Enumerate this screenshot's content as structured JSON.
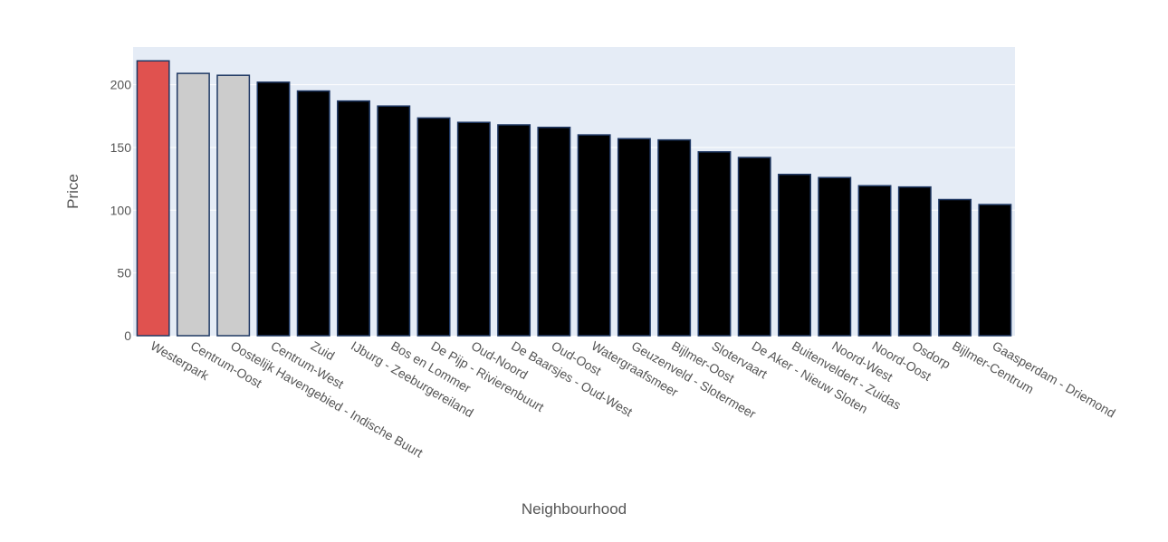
{
  "chart_data": {
    "type": "bar",
    "title": "",
    "xlabel": "Neighbourhood",
    "ylabel": "Price",
    "ylim": [
      0,
      230
    ],
    "yticks": [
      0,
      50,
      100,
      150,
      200
    ],
    "grid": true,
    "categories": [
      "Westerpark",
      "Centrum-Oost",
      "Oostelijk Havengebied - Indische Buurt",
      "Centrum-West",
      "Zuid",
      "IJburg - Zeeburgereiland",
      "Bos en Lommer",
      "De Pijp - Rivierenbuurt",
      "Oud-Noord",
      "De Baarsjes - Oud-West",
      "Oud-Oost",
      "Watergraafsmeer",
      "Geuzenveld - Slotermeer",
      "Bijlmer-Oost",
      "Slotervaart",
      "De Aker - Nieuw Sloten",
      "Buitenveldert - Zuidas",
      "Noord-West",
      "Noord-Oost",
      "Osdorp",
      "Bijlmer-Centrum",
      "Gaasperdam - Driemond"
    ],
    "values": [
      219,
      209,
      207.5,
      202,
      195,
      187,
      183,
      173.5,
      170,
      168,
      166,
      160,
      157,
      156,
      146.5,
      142,
      128.5,
      126,
      119.5,
      118.5,
      108.5,
      104.5
    ],
    "bar_colors": [
      "#e0524f",
      "#cccccc",
      "#cccccc",
      "#000000",
      "#000000",
      "#000000",
      "#000000",
      "#000000",
      "#000000",
      "#000000",
      "#000000",
      "#000000",
      "#000000",
      "#000000",
      "#000000",
      "#000000",
      "#000000",
      "#000000",
      "#000000",
      "#000000",
      "#000000",
      "#000000"
    ],
    "bar_outline_color": "#1f3864",
    "plot_background": "#e5ecf6",
    "gridline_color": "#ffffff"
  }
}
